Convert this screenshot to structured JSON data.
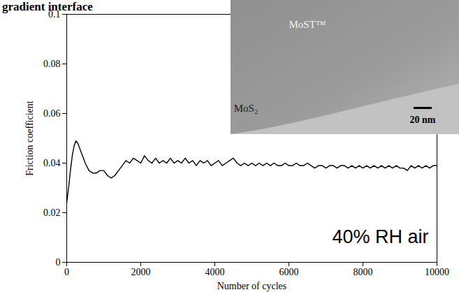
{
  "chart_data": {
    "type": "line",
    "title": "gradient interface",
    "x_label": "Number of cycles",
    "y_label": "Friction coefficient",
    "annotation": "40% RH air",
    "inset_labels": [
      "MoST™",
      "MoS₂",
      "20 nm"
    ],
    "xlim": [
      0,
      10000
    ],
    "xticks": [
      0,
      2000,
      4000,
      6000,
      8000,
      10000
    ],
    "ylim": [
      0,
      0.1
    ],
    "yticks": [
      0,
      0.02,
      0.04,
      0.06,
      0.08,
      0.1
    ],
    "grid": false,
    "x": [
      0,
      50,
      100,
      150,
      200,
      250,
      300,
      350,
      400,
      500,
      600,
      700,
      800,
      900,
      1000,
      1100,
      1200,
      1300,
      1400,
      1500,
      1600,
      1700,
      1800,
      1900,
      2000,
      2100,
      2200,
      2300,
      2400,
      2500,
      2600,
      2700,
      2800,
      2900,
      3000,
      3100,
      3200,
      3300,
      3400,
      3500,
      3600,
      3700,
      3800,
      3900,
      4000,
      4100,
      4200,
      4300,
      4400,
      4500,
      4600,
      4700,
      4800,
      4900,
      5000,
      5100,
      5200,
      5300,
      5400,
      5500,
      5600,
      5700,
      5800,
      5900,
      6000,
      6100,
      6200,
      6300,
      6400,
      6500,
      6600,
      6700,
      6800,
      6900,
      7000,
      7100,
      7200,
      7300,
      7400,
      7500,
      7600,
      7700,
      7800,
      7900,
      8000,
      8100,
      8200,
      8300,
      8400,
      8500,
      8600,
      8700,
      8800,
      8900,
      9000,
      9100,
      9200,
      9300,
      9400,
      9500,
      9600,
      9700,
      9800,
      9900,
      10000
    ],
    "series": [
      {
        "name": "gradient interface",
        "color": "#000000",
        "values": [
          0.024,
          0.03,
          0.037,
          0.043,
          0.047,
          0.049,
          0.048,
          0.046,
          0.044,
          0.04,
          0.037,
          0.036,
          0.036,
          0.037,
          0.037,
          0.035,
          0.034,
          0.035,
          0.037,
          0.039,
          0.041,
          0.04,
          0.042,
          0.041,
          0.04,
          0.043,
          0.041,
          0.04,
          0.042,
          0.04,
          0.041,
          0.04,
          0.042,
          0.04,
          0.041,
          0.04,
          0.042,
          0.04,
          0.041,
          0.039,
          0.041,
          0.04,
          0.041,
          0.039,
          0.04,
          0.041,
          0.039,
          0.04,
          0.041,
          0.042,
          0.04,
          0.039,
          0.04,
          0.039,
          0.04,
          0.039,
          0.04,
          0.039,
          0.04,
          0.039,
          0.04,
          0.039,
          0.039,
          0.04,
          0.039,
          0.039,
          0.04,
          0.039,
          0.039,
          0.04,
          0.039,
          0.038,
          0.039,
          0.039,
          0.038,
          0.039,
          0.039,
          0.038,
          0.039,
          0.039,
          0.038,
          0.039,
          0.038,
          0.039,
          0.038,
          0.039,
          0.038,
          0.039,
          0.038,
          0.039,
          0.038,
          0.039,
          0.038,
          0.039,
          0.038,
          0.038,
          0.037,
          0.039,
          0.038,
          0.039,
          0.038,
          0.039,
          0.038,
          0.039,
          0.039
        ]
      }
    ]
  }
}
